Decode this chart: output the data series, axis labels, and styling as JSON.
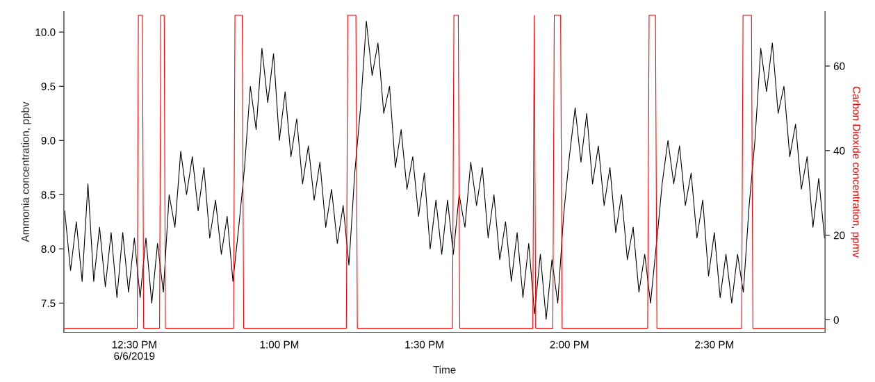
{
  "chart_data": {
    "type": "line",
    "xlabel": "Time",
    "ylabel": "Ammonia concentration, ppbv",
    "y2label": "Carbon Dioxide concentration, ppmv",
    "xlim": [
      12.257,
      14.882
    ],
    "xticks": [
      {
        "value": 12.5,
        "label": "12:30 PM\n6/6/2019"
      },
      {
        "value": 13,
        "label": "1:00 PM"
      },
      {
        "value": 13.5,
        "label": "1:30 PM"
      },
      {
        "value": 14,
        "label": "2:00 PM"
      },
      {
        "value": 14.5,
        "label": "2:30 PM"
      }
    ],
    "ylim": [
      7.23,
      10.19
    ],
    "yticks": [
      {
        "value": 7.5,
        "label": "7.5"
      },
      {
        "value": 8,
        "label": "8.0"
      },
      {
        "value": 8.5,
        "label": "8.5"
      },
      {
        "value": 9,
        "label": "9.0"
      },
      {
        "value": 9.5,
        "label": "9.5"
      },
      {
        "value": 10,
        "label": "10.0"
      }
    ],
    "y2lim": [
      -2.97,
      72.9
    ],
    "y2ticks": [
      0,
      20,
      40,
      60
    ],
    "grid": false,
    "legend": false,
    "series": [
      {
        "color": "#000000",
        "x": [
          12.26,
          12.28,
          12.3,
          12.32,
          12.34,
          12.36,
          12.38,
          12.4,
          12.42,
          12.44,
          12.46,
          12.48,
          12.5,
          12.52,
          12.54,
          12.56,
          12.58,
          12.6,
          12.62,
          12.64,
          12.66,
          12.68,
          12.7,
          12.72,
          12.74,
          12.76,
          12.78,
          12.8,
          12.82,
          12.84,
          12.86,
          12.88,
          12.9,
          12.92,
          12.94,
          12.96,
          12.98,
          13.0,
          13.02,
          13.04,
          13.06,
          13.08,
          13.1,
          13.12,
          13.14,
          13.16,
          13.18,
          13.2,
          13.22,
          13.24,
          13.26,
          13.28,
          13.3,
          13.32,
          13.34,
          13.36,
          13.38,
          13.4,
          13.42,
          13.44,
          13.46,
          13.48,
          13.5,
          13.52,
          13.54,
          13.56,
          13.58,
          13.6,
          13.62,
          13.64,
          13.66,
          13.68,
          13.7,
          13.72,
          13.74,
          13.76,
          13.78,
          13.8,
          13.82,
          13.84,
          13.86,
          13.88,
          13.9,
          13.92,
          13.94,
          13.96,
          13.98,
          14.0,
          14.02,
          14.04,
          14.06,
          14.08,
          14.1,
          14.12,
          14.14,
          14.16,
          14.18,
          14.2,
          14.22,
          14.24,
          14.26,
          14.28,
          14.306,
          14.32,
          14.34,
          14.36,
          14.38,
          14.4,
          14.42,
          14.44,
          14.46,
          14.48,
          14.5,
          14.52,
          14.54,
          14.56,
          14.58,
          14.6,
          14.62,
          14.64,
          14.66,
          14.68,
          14.7,
          14.72,
          14.74,
          14.76,
          14.78,
          14.8,
          14.82,
          14.84,
          14.86,
          14.88
        ],
        "values": [
          8.35,
          7.8,
          8.25,
          7.7,
          8.6,
          7.7,
          8.2,
          7.65,
          8.15,
          7.55,
          8.15,
          7.6,
          8.1,
          7.55,
          8.1,
          7.5,
          8.05,
          7.6,
          8.5,
          8.2,
          8.9,
          8.5,
          8.85,
          8.35,
          8.75,
          8.1,
          8.45,
          7.95,
          8.3,
          7.7,
          8.2,
          8.75,
          9.5,
          9.1,
          9.85,
          9.35,
          9.8,
          9.0,
          9.45,
          8.85,
          9.2,
          8.6,
          8.95,
          8.45,
          8.8,
          8.2,
          8.55,
          8.05,
          8.4,
          7.85,
          8.7,
          9.3,
          10.1,
          9.6,
          9.9,
          9.25,
          9.5,
          8.75,
          9.1,
          8.55,
          8.85,
          8.3,
          8.7,
          8.0,
          8.45,
          7.95,
          8.45,
          7.95,
          8.5,
          8.2,
          8.8,
          8.4,
          8.75,
          8.1,
          8.5,
          7.9,
          8.25,
          7.7,
          8.15,
          7.55,
          8.05,
          7.4,
          7.95,
          7.35,
          7.9,
          7.5,
          8.3,
          8.85,
          9.3,
          8.8,
          9.25,
          8.6,
          8.95,
          8.4,
          8.75,
          8.15,
          8.5,
          7.9,
          8.2,
          7.6,
          7.95,
          7.5,
          8.2,
          8.6,
          9.0,
          8.6,
          8.95,
          8.4,
          8.7,
          8.1,
          8.45,
          7.75,
          8.15,
          7.55,
          7.95,
          7.5,
          7.95,
          7.6,
          8.4,
          9.0,
          9.85,
          9.45,
          9.9,
          9.25,
          9.5,
          8.85,
          9.15,
          8.55,
          8.85,
          8.2,
          8.65,
          8.1
        ]
      },
      {
        "color": "#ff0000",
        "axis": "y2",
        "x": [
          12.257,
          12.51,
          12.514,
          12.528,
          12.532,
          12.587,
          12.591,
          12.603,
          12.607,
          12.842,
          12.847,
          12.872,
          12.877,
          13.231,
          13.236,
          13.264,
          13.269,
          13.597,
          13.602,
          13.617,
          13.622,
          13.874,
          13.879,
          13.884,
          13.943,
          13.948,
          13.97,
          13.975,
          14.27,
          14.275,
          14.297,
          14.302,
          14.594,
          14.599,
          14.628,
          14.633,
          14.882
        ],
        "values": [
          -2,
          -2,
          72,
          72,
          -2,
          -2,
          72,
          72,
          -2,
          -2,
          72,
          72,
          -2,
          -2,
          72,
          72,
          -2,
          -2,
          72,
          72,
          -2,
          -2,
          72,
          -2,
          -2,
          72,
          72,
          -2,
          -2,
          72,
          72,
          -2,
          -2,
          72,
          72,
          -2,
          -2
        ]
      }
    ]
  }
}
